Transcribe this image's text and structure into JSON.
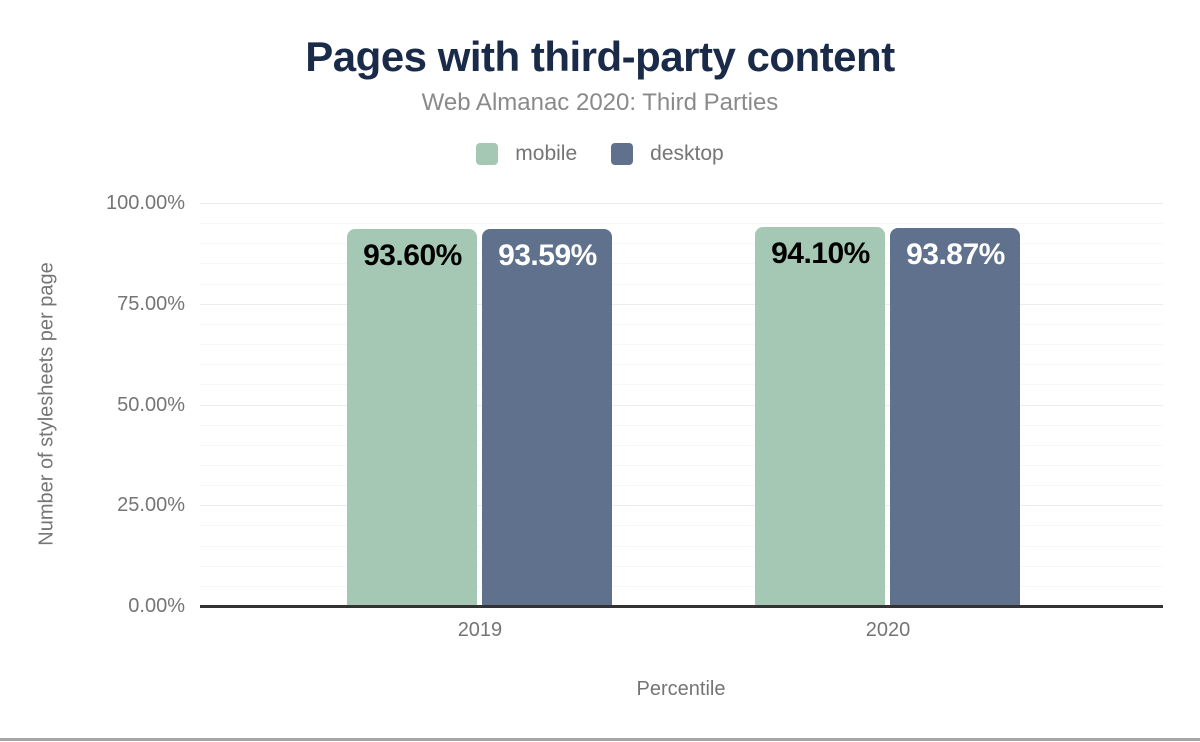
{
  "chart_data": {
    "type": "bar",
    "title": "Pages with third-party content",
    "subtitle": "Web Almanac 2020: Third Parties",
    "xlabel": "Percentile",
    "ylabel": "Number of stylesheets per page",
    "categories": [
      "2019",
      "2020"
    ],
    "series": [
      {
        "name": "mobile",
        "color": "#a5c8b5",
        "label_color": "#000000",
        "values": [
          93.6,
          94.1
        ],
        "labels": [
          "93.60%",
          "94.10%"
        ]
      },
      {
        "name": "desktop",
        "color": "#5f718d",
        "label_color": "#ffffff",
        "values": [
          93.59,
          93.87
        ],
        "labels": [
          "93.59%",
          "93.87%"
        ]
      }
    ],
    "ylim": [
      0,
      100
    ],
    "yticks": [
      {
        "value": 0,
        "label": "0.00%"
      },
      {
        "value": 25,
        "label": "25.00%"
      },
      {
        "value": 50,
        "label": "50.00%"
      },
      {
        "value": 75,
        "label": "75.00%"
      },
      {
        "value": 100,
        "label": "100.00%"
      }
    ],
    "grid": {
      "minor_step": 5,
      "major_step": 25,
      "on": true
    },
    "legend_position": "top"
  },
  "colors": {
    "title_text": "#1a2b49",
    "subtitle_text": "#8a8a8a",
    "axis_text": "#757575",
    "axis_line": "#333333",
    "grid_minor": "#f7f7f7",
    "grid_major": "#ececec",
    "bottom_divider": "#a6a6a6"
  }
}
